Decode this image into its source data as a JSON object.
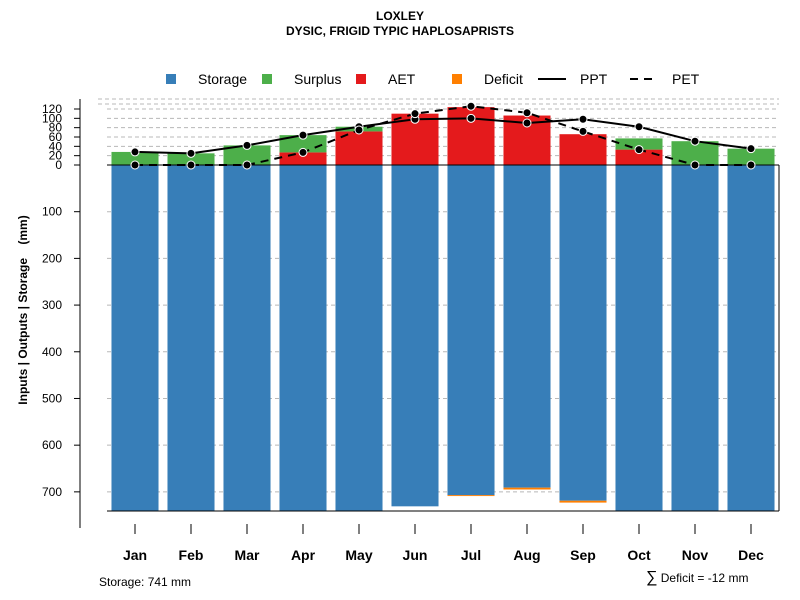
{
  "title": "LOXLEY",
  "subtitle": "DYSIC, FRIGID TYPIC HAPLOSAPRISTS",
  "footer": {
    "storage_note": "Storage: 741 mm",
    "deficit_symbol": "∑",
    "deficit_note": "Deficit = -12 mm"
  },
  "chart_data": {
    "type": "bar",
    "title": "LOXLEY",
    "ylabel": "Inputs | Outputs | Storage    (mm)",
    "categories": [
      "Jan",
      "Feb",
      "Mar",
      "Apr",
      "May",
      "Jun",
      "Jul",
      "Aug",
      "Sep",
      "Oct",
      "Nov",
      "Dec"
    ],
    "ylim_top": [
      0,
      140
    ],
    "ylim_bottom": [
      0,
      741
    ],
    "yticks_top": [
      0,
      20,
      40,
      60,
      80,
      100,
      120
    ],
    "yticks_bottom": [
      100,
      200,
      300,
      400,
      500,
      600,
      700
    ],
    "storage_capacity": 741,
    "legend": [
      {
        "label": "Storage",
        "kind": "box",
        "color": "#377EB8"
      },
      {
        "label": "Surplus",
        "kind": "box",
        "color": "#4DAF4A"
      },
      {
        "label": "AET",
        "kind": "box",
        "color": "#E41A1C"
      },
      {
        "label": "Deficit",
        "kind": "box",
        "color": "#FF7F00"
      },
      {
        "label": "PPT",
        "kind": "solid",
        "color": "#000000"
      },
      {
        "label": "PET",
        "kind": "dashed",
        "color": "#000000"
      }
    ],
    "series": [
      {
        "name": "Storage",
        "values": [
          741,
          741,
          741,
          741,
          741,
          731,
          707,
          691,
          719,
          741,
          741,
          741
        ]
      },
      {
        "name": "Deficit",
        "values": [
          0,
          0,
          0,
          0,
          0,
          0,
          2,
          4,
          4,
          0,
          0,
          0
        ]
      },
      {
        "name": "AET",
        "values": [
          0,
          0,
          0,
          27,
          72,
          110,
          124,
          106,
          66,
          33,
          0,
          0
        ]
      },
      {
        "name": "Surplus",
        "values": [
          28,
          25,
          42,
          37,
          10,
          0,
          0,
          0,
          0,
          24,
          51,
          35
        ]
      },
      {
        "name": "PPT",
        "values": [
          28,
          25,
          42,
          64,
          82,
          98,
          100,
          90,
          98,
          82,
          51,
          35
        ]
      },
      {
        "name": "PET",
        "values": [
          0,
          0,
          0,
          27,
          75,
          110,
          126,
          112,
          72,
          33,
          0,
          0
        ]
      }
    ]
  }
}
